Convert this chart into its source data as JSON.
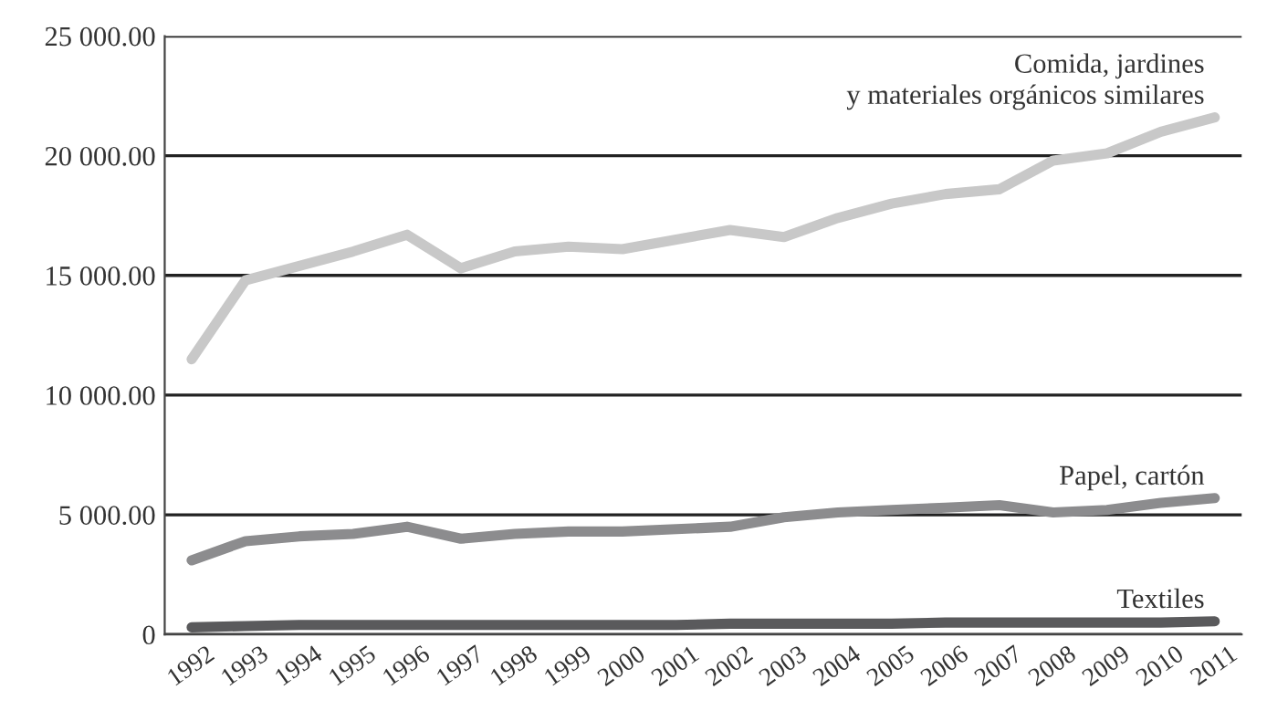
{
  "chart_data": {
    "type": "line",
    "categories": [
      "1992",
      "1993",
      "1994",
      "1995",
      "1996",
      "1997",
      "1998",
      "1999",
      "2000",
      "2001",
      "2002",
      "2003",
      "2004",
      "2005",
      "2006",
      "2007",
      "2008",
      "2009",
      "2010",
      "2011"
    ],
    "series": [
      {
        "name": "Comida, jardines\ny materiales orgánicos similares",
        "color": "#c8c8c8",
        "values": [
          11500,
          14800,
          15400,
          16000,
          16700,
          15300,
          16000,
          16200,
          16100,
          16500,
          16900,
          16600,
          17400,
          18000,
          18400,
          18600,
          19800,
          20100,
          21000,
          21600
        ]
      },
      {
        "name": "Papel, cartón",
        "color": "#8c8c8e",
        "values": [
          3100,
          3900,
          4100,
          4200,
          4500,
          4000,
          4200,
          4300,
          4300,
          4400,
          4500,
          4900,
          5100,
          5200,
          5300,
          5400,
          5100,
          5200,
          5500,
          5700
        ]
      },
      {
        "name": "Textiles",
        "color": "#5a5a5c",
        "values": [
          300,
          350,
          400,
          400,
          400,
          400,
          400,
          400,
          400,
          400,
          450,
          450,
          450,
          450,
          500,
          500,
          500,
          500,
          500,
          550
        ]
      }
    ],
    "ylim": [
      0,
      25000
    ],
    "yticks": [
      0,
      {
        "value": 5000,
        "label": "5 000.00"
      },
      {
        "value": 10000,
        "label": "10 000.00"
      },
      {
        "value": 15000,
        "label": "15 000.00"
      },
      {
        "value": 20000,
        "label": "20 000.00"
      },
      {
        "value": 25000,
        "label": "25 000.00"
      }
    ],
    "grid": "y",
    "legend": false,
    "marker": "none",
    "line_style": "solid"
  }
}
